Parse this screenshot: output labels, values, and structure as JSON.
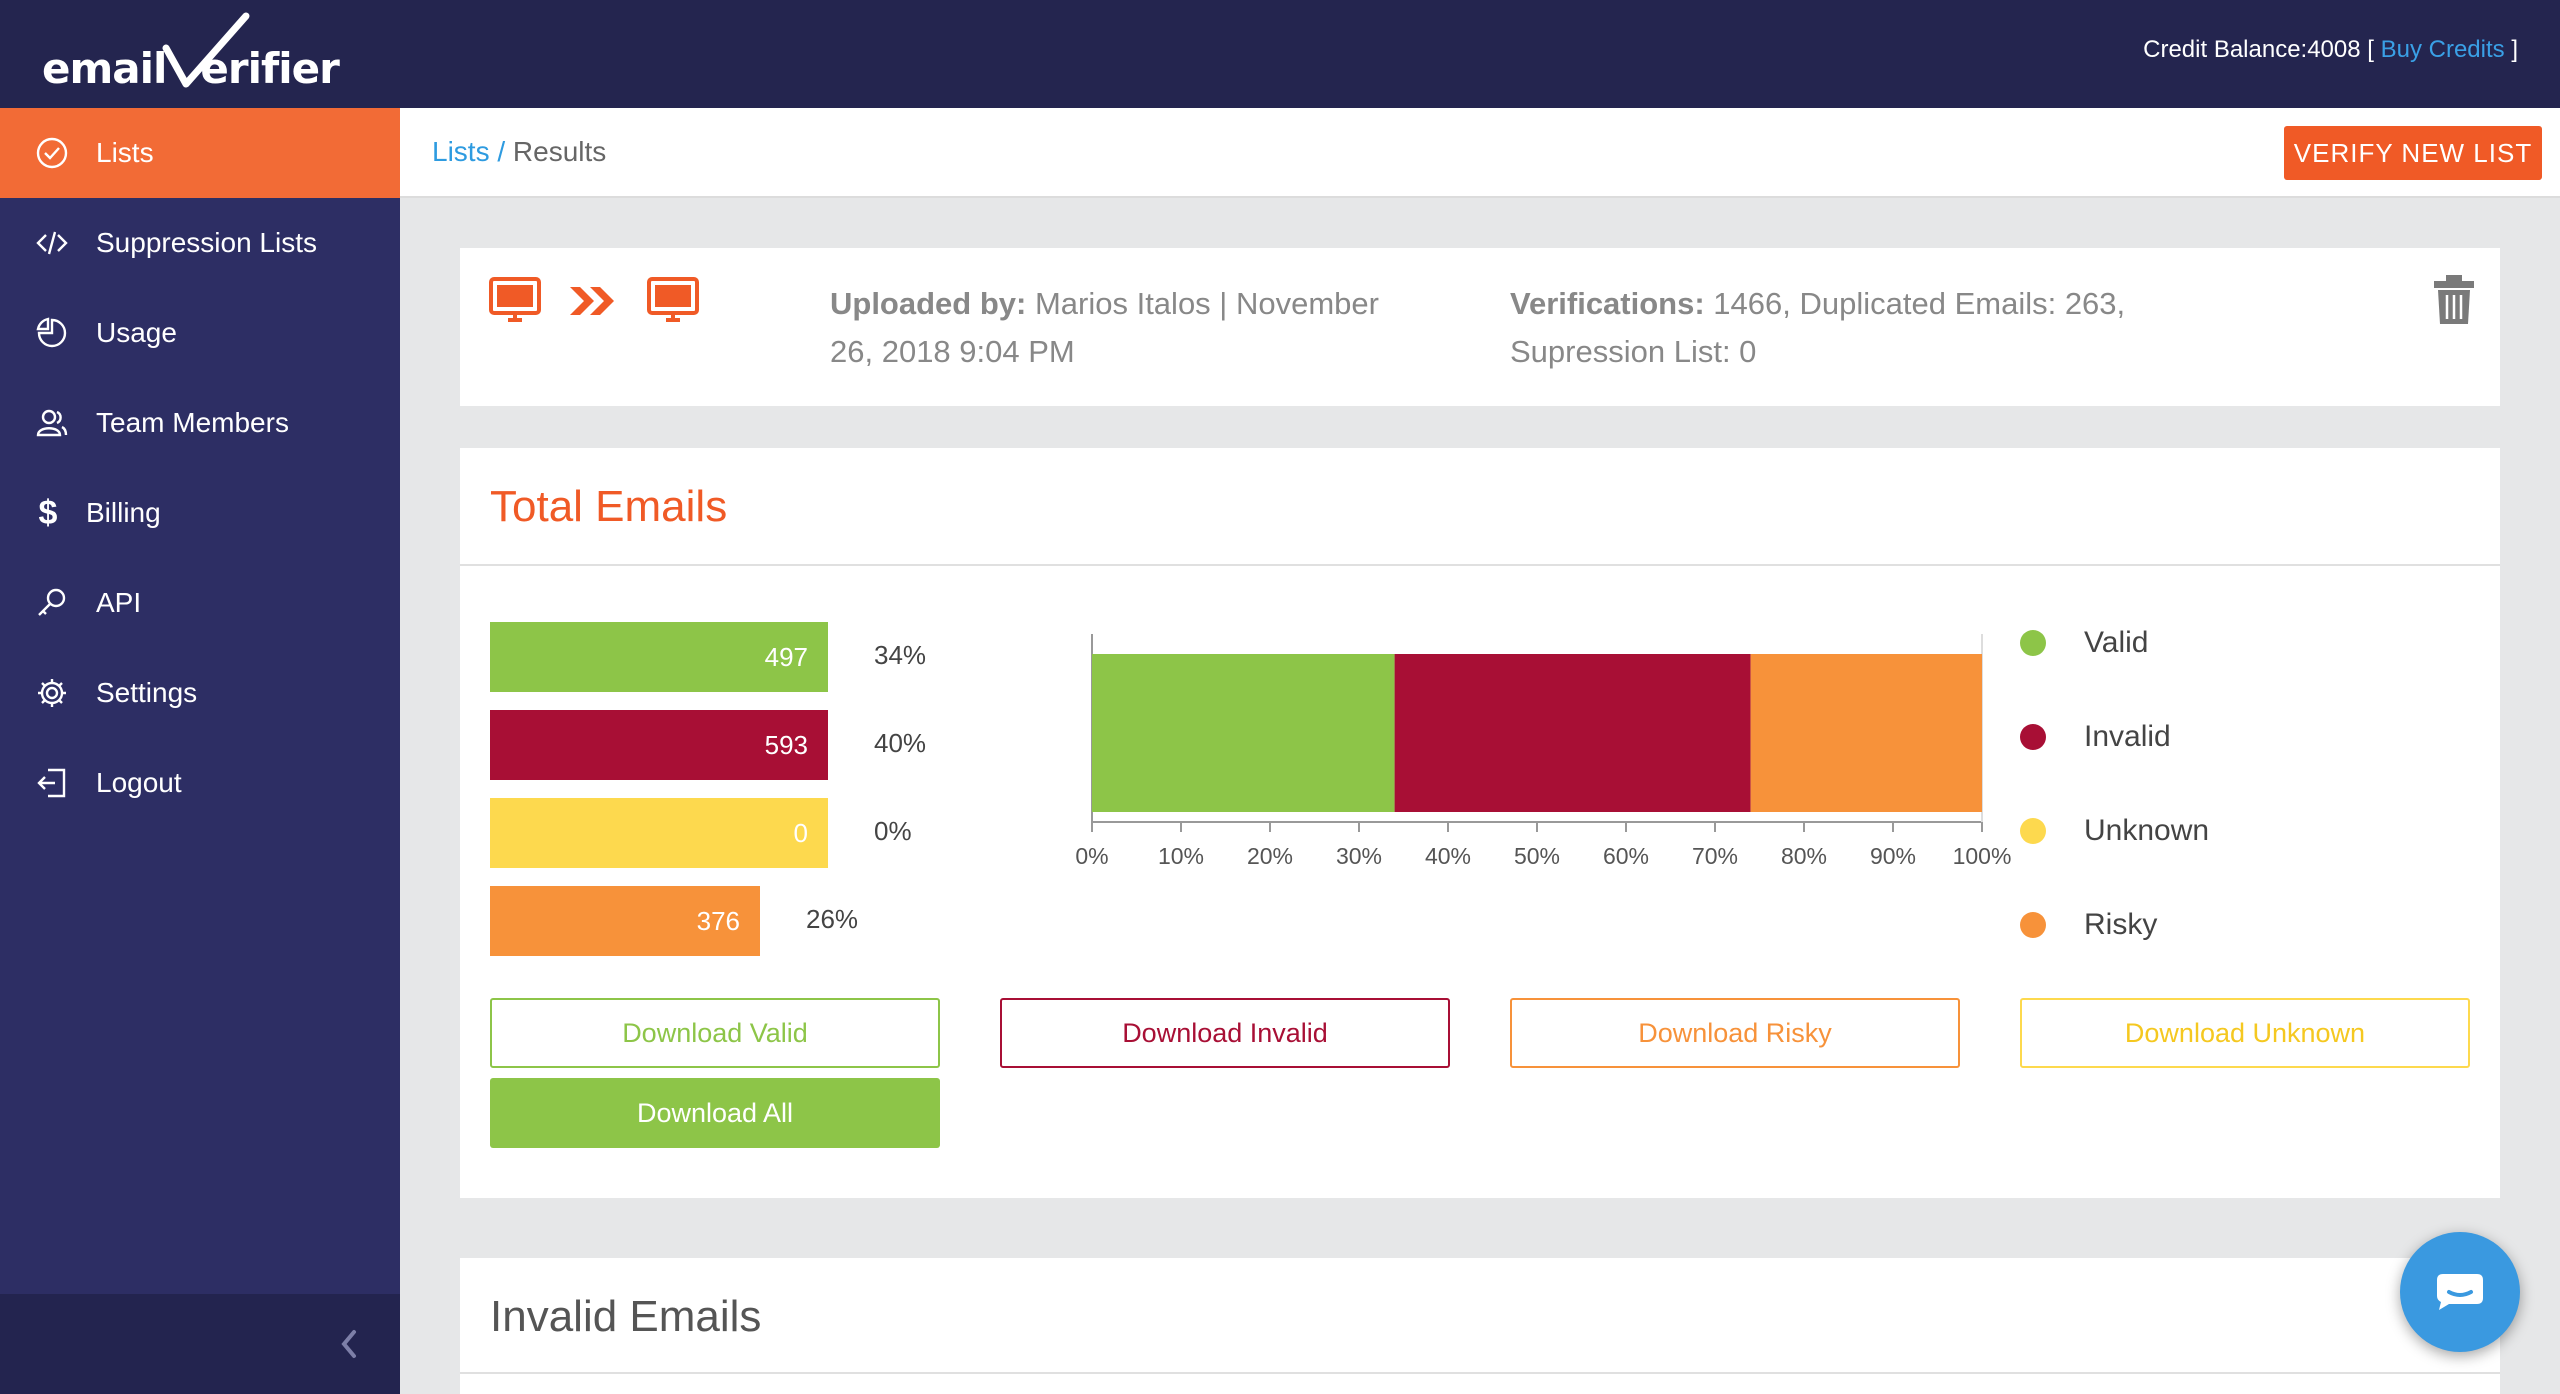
{
  "brand": {
    "logo_text": "email erifier"
  },
  "header": {
    "credit_label": "Credit Balance:4008 [",
    "buy_credits": "Buy Credits",
    "credit_close": " ]"
  },
  "sidebar": {
    "items": [
      {
        "label": "Lists",
        "icon": "check-circle-icon",
        "active": true
      },
      {
        "label": "Suppression Lists",
        "icon": "code-icon"
      },
      {
        "label": "Usage",
        "icon": "pie-chart-icon"
      },
      {
        "label": "Team Members",
        "icon": "users-icon"
      },
      {
        "label": "Billing",
        "icon": "dollar-icon"
      },
      {
        "label": "API",
        "icon": "key-icon"
      },
      {
        "label": "Settings",
        "icon": "gear-icon"
      },
      {
        "label": "Logout",
        "icon": "logout-icon"
      }
    ]
  },
  "breadcrumb": {
    "link": "Lists",
    "sep": " / ",
    "current": "Results"
  },
  "verify_button": "VERIFY NEW LIST",
  "upload": {
    "uploaded_by_label": "Uploaded by:",
    "uploaded_by_value": " Marios Italos | November 26, 2018 9:04 PM",
    "verifications_label": "Verifications:",
    "verifications_value": " 1466, Duplicated Emails: 263, Supression List: 0"
  },
  "total": {
    "title": "Total Emails",
    "stats": [
      {
        "name": "valid",
        "count": "497",
        "pct": "34%"
      },
      {
        "name": "invalid",
        "count": "593",
        "pct": "40%"
      },
      {
        "name": "unknown",
        "count": "0",
        "pct": "0%"
      },
      {
        "name": "risky",
        "count": "376",
        "pct": "26%"
      }
    ],
    "legend": [
      "Valid",
      "Invalid",
      "Unknown",
      "Risky"
    ],
    "buttons": {
      "valid": "Download Valid",
      "invalid": "Download Invalid",
      "risky": "Download Risky",
      "unknown": "Download Unknown",
      "all": "Download All"
    }
  },
  "colors": {
    "valid": "#8dc548",
    "invalid": "#a80f35",
    "unknown": "#fdd94e",
    "risky": "#f7923a",
    "accent": "#f05a26"
  },
  "chart_data": {
    "type": "bar",
    "orientation": "horizontal-stacked",
    "series": [
      {
        "name": "Valid",
        "values": [
          34
        ]
      },
      {
        "name": "Invalid",
        "values": [
          40
        ]
      },
      {
        "name": "Unknown",
        "values": [
          0
        ]
      },
      {
        "name": "Risky",
        "values": [
          26
        ]
      }
    ],
    "xlim": [
      0,
      100
    ],
    "ticks": [
      "0%",
      "10%",
      "20%",
      "30%",
      "40%",
      "50%",
      "60%",
      "70%",
      "80%",
      "90%",
      "100%"
    ]
  },
  "invalid": {
    "title": "Invalid Emails"
  }
}
